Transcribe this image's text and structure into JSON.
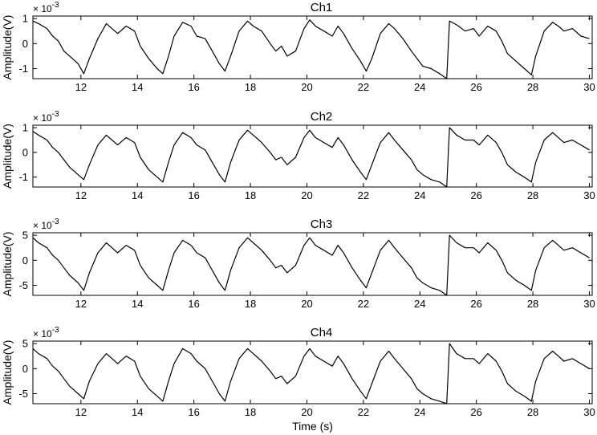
{
  "chart_data": [
    {
      "type": "line",
      "title": "Ch1",
      "ylabel": "Amplitude(V)",
      "xlabel": "",
      "exponent_label": "× 10",
      "exponent_power": "-3",
      "xlim": [
        10.3,
        30.1
      ],
      "ylim": [
        -1.4,
        1.1
      ],
      "x_ticks": [
        12,
        14,
        16,
        18,
        20,
        22,
        24,
        26,
        28,
        30
      ],
      "y_ticks": [
        -1,
        0,
        1
      ],
      "y_tick_labels": [
        "-1",
        "0",
        "1"
      ],
      "series": [
        {
          "x": [
            10.3,
            10.5,
            10.8,
            11.0,
            11.2,
            11.4,
            11.6,
            11.9,
            12.1,
            12.3,
            12.6,
            12.9,
            13.1,
            13.3,
            13.6,
            13.9,
            14.1,
            14.4,
            14.7,
            14.9,
            15.1,
            15.3,
            15.6,
            15.9,
            16.1,
            16.4,
            16.7,
            16.9,
            17.1,
            17.3,
            17.6,
            17.9,
            18.1,
            18.4,
            18.7,
            18.9,
            19.1,
            19.3,
            19.6,
            19.9,
            20.1,
            20.3,
            20.6,
            20.9,
            21.1,
            21.3,
            21.6,
            21.9,
            22.1,
            22.3,
            22.6,
            22.9,
            23.1,
            23.4,
            23.7,
            23.9,
            24.1,
            24.4,
            24.7,
            24.95,
            25.05,
            25.3,
            25.6,
            25.9,
            26.1,
            26.4,
            26.7,
            26.9,
            27.1,
            27.4,
            27.7,
            27.95,
            28.1,
            28.4,
            28.7,
            28.9,
            29.1,
            29.4,
            29.7,
            30.0
          ],
          "y": [
            0.9,
            0.8,
            0.6,
            0.3,
            0.1,
            -0.3,
            -0.5,
            -0.8,
            -1.2,
            -0.6,
            0.2,
            0.8,
            0.6,
            0.4,
            0.7,
            0.5,
            -0.1,
            -0.6,
            -1.0,
            -1.2,
            -0.5,
            0.3,
            0.85,
            0.7,
            0.3,
            0.2,
            -0.4,
            -0.8,
            -1.1,
            -0.5,
            0.5,
            0.9,
            0.7,
            0.5,
            0.0,
            -0.3,
            -0.1,
            -0.5,
            -0.3,
            0.6,
            0.95,
            0.7,
            0.5,
            0.3,
            0.7,
            0.4,
            -0.2,
            -0.7,
            -1.1,
            -0.6,
            0.4,
            0.8,
            0.6,
            0.2,
            -0.3,
            -0.6,
            -0.9,
            -1.0,
            -1.2,
            -1.4,
            0.9,
            0.75,
            0.5,
            0.6,
            0.3,
            0.7,
            0.5,
            0.1,
            -0.4,
            -0.7,
            -1.0,
            -1.25,
            -0.5,
            0.5,
            0.85,
            0.7,
            0.5,
            0.6,
            0.3,
            0.2
          ]
        }
      ]
    },
    {
      "type": "line",
      "title": "Ch2",
      "ylabel": "Amplitude(V)",
      "xlabel": "",
      "exponent_label": "× 10",
      "exponent_power": "-3",
      "xlim": [
        10.3,
        30.1
      ],
      "ylim": [
        -1.4,
        1.1
      ],
      "x_ticks": [
        12,
        14,
        16,
        18,
        20,
        22,
        24,
        26,
        28,
        30
      ],
      "y_ticks": [
        -1,
        0,
        1
      ],
      "y_tick_labels": [
        "-1",
        "0",
        "1"
      ],
      "series": [
        {
          "x": [
            10.3,
            10.5,
            10.8,
            11.0,
            11.2,
            11.4,
            11.6,
            11.9,
            12.1,
            12.3,
            12.6,
            12.9,
            13.1,
            13.3,
            13.6,
            13.9,
            14.1,
            14.4,
            14.7,
            14.9,
            15.1,
            15.3,
            15.6,
            15.9,
            16.1,
            16.4,
            16.7,
            16.9,
            17.1,
            17.3,
            17.6,
            17.9,
            18.1,
            18.4,
            18.7,
            18.9,
            19.1,
            19.3,
            19.6,
            19.9,
            20.1,
            20.3,
            20.6,
            20.9,
            21.1,
            21.3,
            21.6,
            21.9,
            22.1,
            22.3,
            22.6,
            22.9,
            23.1,
            23.4,
            23.7,
            23.9,
            24.1,
            24.4,
            24.7,
            24.95,
            25.05,
            25.3,
            25.6,
            25.9,
            26.1,
            26.4,
            26.7,
            26.9,
            27.1,
            27.4,
            27.7,
            27.95,
            28.1,
            28.4,
            28.7,
            28.9,
            29.1,
            29.4,
            29.7,
            30.0
          ],
          "y": [
            0.85,
            0.7,
            0.5,
            0.2,
            0.0,
            -0.3,
            -0.6,
            -0.9,
            -1.1,
            -0.5,
            0.3,
            0.7,
            0.5,
            0.3,
            0.6,
            0.4,
            -0.2,
            -0.7,
            -1.0,
            -1.2,
            -0.4,
            0.3,
            0.8,
            0.6,
            0.3,
            0.1,
            -0.5,
            -0.9,
            -1.2,
            -0.4,
            0.5,
            0.9,
            0.7,
            0.4,
            0.0,
            -0.3,
            -0.2,
            -0.5,
            -0.2,
            0.6,
            0.9,
            0.6,
            0.4,
            0.2,
            0.6,
            0.3,
            -0.3,
            -0.8,
            -1.1,
            -0.5,
            0.4,
            0.8,
            0.5,
            0.1,
            -0.3,
            -0.7,
            -0.9,
            -1.1,
            -1.2,
            -1.4,
            1.0,
            0.7,
            0.5,
            0.5,
            0.3,
            0.7,
            0.4,
            0.0,
            -0.5,
            -0.8,
            -1.0,
            -1.2,
            -0.4,
            0.5,
            0.8,
            0.6,
            0.4,
            0.5,
            0.3,
            0.1
          ]
        }
      ]
    },
    {
      "type": "line",
      "title": "Ch3",
      "ylabel": "Amplitude(V)",
      "xlabel": "",
      "exponent_label": "× 10",
      "exponent_power": "-3",
      "xlim": [
        10.3,
        30.1
      ],
      "ylim": [
        -7,
        5.5
      ],
      "x_ticks": [
        12,
        14,
        16,
        18,
        20,
        22,
        24,
        26,
        28,
        30
      ],
      "y_ticks": [
        -5,
        0,
        5
      ],
      "y_tick_labels": [
        "-5",
        "0",
        "5"
      ],
      "series": [
        {
          "x": [
            10.3,
            10.5,
            10.8,
            11.0,
            11.2,
            11.4,
            11.6,
            11.9,
            12.1,
            12.3,
            12.6,
            12.9,
            13.1,
            13.3,
            13.6,
            13.9,
            14.1,
            14.4,
            14.7,
            14.9,
            15.1,
            15.3,
            15.6,
            15.9,
            16.1,
            16.4,
            16.7,
            16.9,
            17.1,
            17.3,
            17.6,
            17.9,
            18.1,
            18.4,
            18.7,
            18.9,
            19.1,
            19.3,
            19.6,
            19.9,
            20.1,
            20.3,
            20.6,
            20.9,
            21.1,
            21.3,
            21.6,
            21.9,
            22.1,
            22.3,
            22.6,
            22.9,
            23.1,
            23.4,
            23.7,
            23.9,
            24.1,
            24.4,
            24.7,
            24.95,
            25.05,
            25.3,
            25.6,
            25.9,
            26.1,
            26.4,
            26.7,
            26.9,
            27.1,
            27.4,
            27.7,
            27.95,
            28.1,
            28.4,
            28.7,
            28.9,
            29.1,
            29.4,
            29.7,
            30.0
          ],
          "y": [
            4.5,
            3.5,
            2.5,
            1.0,
            0.0,
            -1.5,
            -3.0,
            -4.5,
            -6.0,
            -2.5,
            1.5,
            3.5,
            2.5,
            1.5,
            3.0,
            2.0,
            -1.0,
            -3.5,
            -5.0,
            -6.0,
            -2.0,
            1.5,
            4.0,
            3.0,
            1.5,
            0.5,
            -2.5,
            -4.5,
            -6.0,
            -2.0,
            2.5,
            4.5,
            3.5,
            2.0,
            0.0,
            -1.5,
            -1.0,
            -2.5,
            -1.0,
            3.0,
            4.5,
            3.0,
            2.0,
            1.0,
            3.0,
            1.5,
            -1.5,
            -4.0,
            -5.5,
            -2.5,
            2.0,
            4.0,
            2.5,
            0.5,
            -1.5,
            -3.5,
            -4.5,
            -5.5,
            -6.0,
            -7.0,
            5.0,
            3.5,
            2.5,
            2.5,
            1.5,
            3.5,
            2.0,
            0.0,
            -2.5,
            -4.0,
            -5.0,
            -6.0,
            -2.0,
            2.5,
            4.0,
            3.0,
            2.0,
            2.5,
            1.5,
            0.5
          ]
        }
      ]
    },
    {
      "type": "line",
      "title": "Ch4",
      "ylabel": "Amplitude(V)",
      "xlabel": "Time (s)",
      "exponent_label": "× 10",
      "exponent_power": "-3",
      "xlim": [
        10.3,
        30.1
      ],
      "ylim": [
        -7,
        5.5
      ],
      "x_ticks": [
        12,
        14,
        16,
        18,
        20,
        22,
        24,
        26,
        28,
        30
      ],
      "y_ticks": [
        -5,
        0,
        5
      ],
      "y_tick_labels": [
        "-5",
        "0",
        "5"
      ],
      "series": [
        {
          "x": [
            10.3,
            10.5,
            10.8,
            11.0,
            11.2,
            11.4,
            11.6,
            11.9,
            12.1,
            12.3,
            12.6,
            12.9,
            13.1,
            13.3,
            13.6,
            13.9,
            14.1,
            14.4,
            14.7,
            14.9,
            15.1,
            15.3,
            15.6,
            15.9,
            16.1,
            16.4,
            16.7,
            16.9,
            17.1,
            17.3,
            17.6,
            17.9,
            18.1,
            18.4,
            18.7,
            18.9,
            19.1,
            19.3,
            19.6,
            19.9,
            20.1,
            20.3,
            20.6,
            20.9,
            21.1,
            21.3,
            21.6,
            21.9,
            22.1,
            22.3,
            22.6,
            22.9,
            23.1,
            23.4,
            23.7,
            23.9,
            24.1,
            24.4,
            24.7,
            24.95,
            25.05,
            25.3,
            25.6,
            25.9,
            26.1,
            26.4,
            26.7,
            26.9,
            27.1,
            27.4,
            27.7,
            27.95,
            28.1,
            28.4,
            28.7,
            28.9,
            29.1,
            29.4,
            29.7,
            30.0
          ],
          "y": [
            4.0,
            3.0,
            2.0,
            0.5,
            -0.5,
            -2.0,
            -3.5,
            -5.0,
            -6.0,
            -2.5,
            1.0,
            3.0,
            2.0,
            1.0,
            2.5,
            1.5,
            -1.5,
            -4.0,
            -5.5,
            -6.5,
            -2.5,
            1.0,
            4.0,
            3.0,
            1.5,
            0.0,
            -3.0,
            -5.0,
            -6.5,
            -2.5,
            2.0,
            4.0,
            3.0,
            1.5,
            -0.5,
            -2.0,
            -1.5,
            -3.0,
            -1.5,
            2.5,
            4.0,
            2.5,
            1.5,
            0.5,
            2.5,
            1.0,
            -2.0,
            -4.5,
            -6.0,
            -3.0,
            1.5,
            3.5,
            2.0,
            0.0,
            -2.0,
            -4.0,
            -5.0,
            -6.0,
            -6.5,
            -7.0,
            5.0,
            3.0,
            2.0,
            2.0,
            1.0,
            3.0,
            1.5,
            -0.5,
            -3.0,
            -4.5,
            -5.5,
            -6.5,
            -2.5,
            2.0,
            3.5,
            2.5,
            1.5,
            2.0,
            1.0,
            0.0
          ]
        }
      ]
    }
  ]
}
